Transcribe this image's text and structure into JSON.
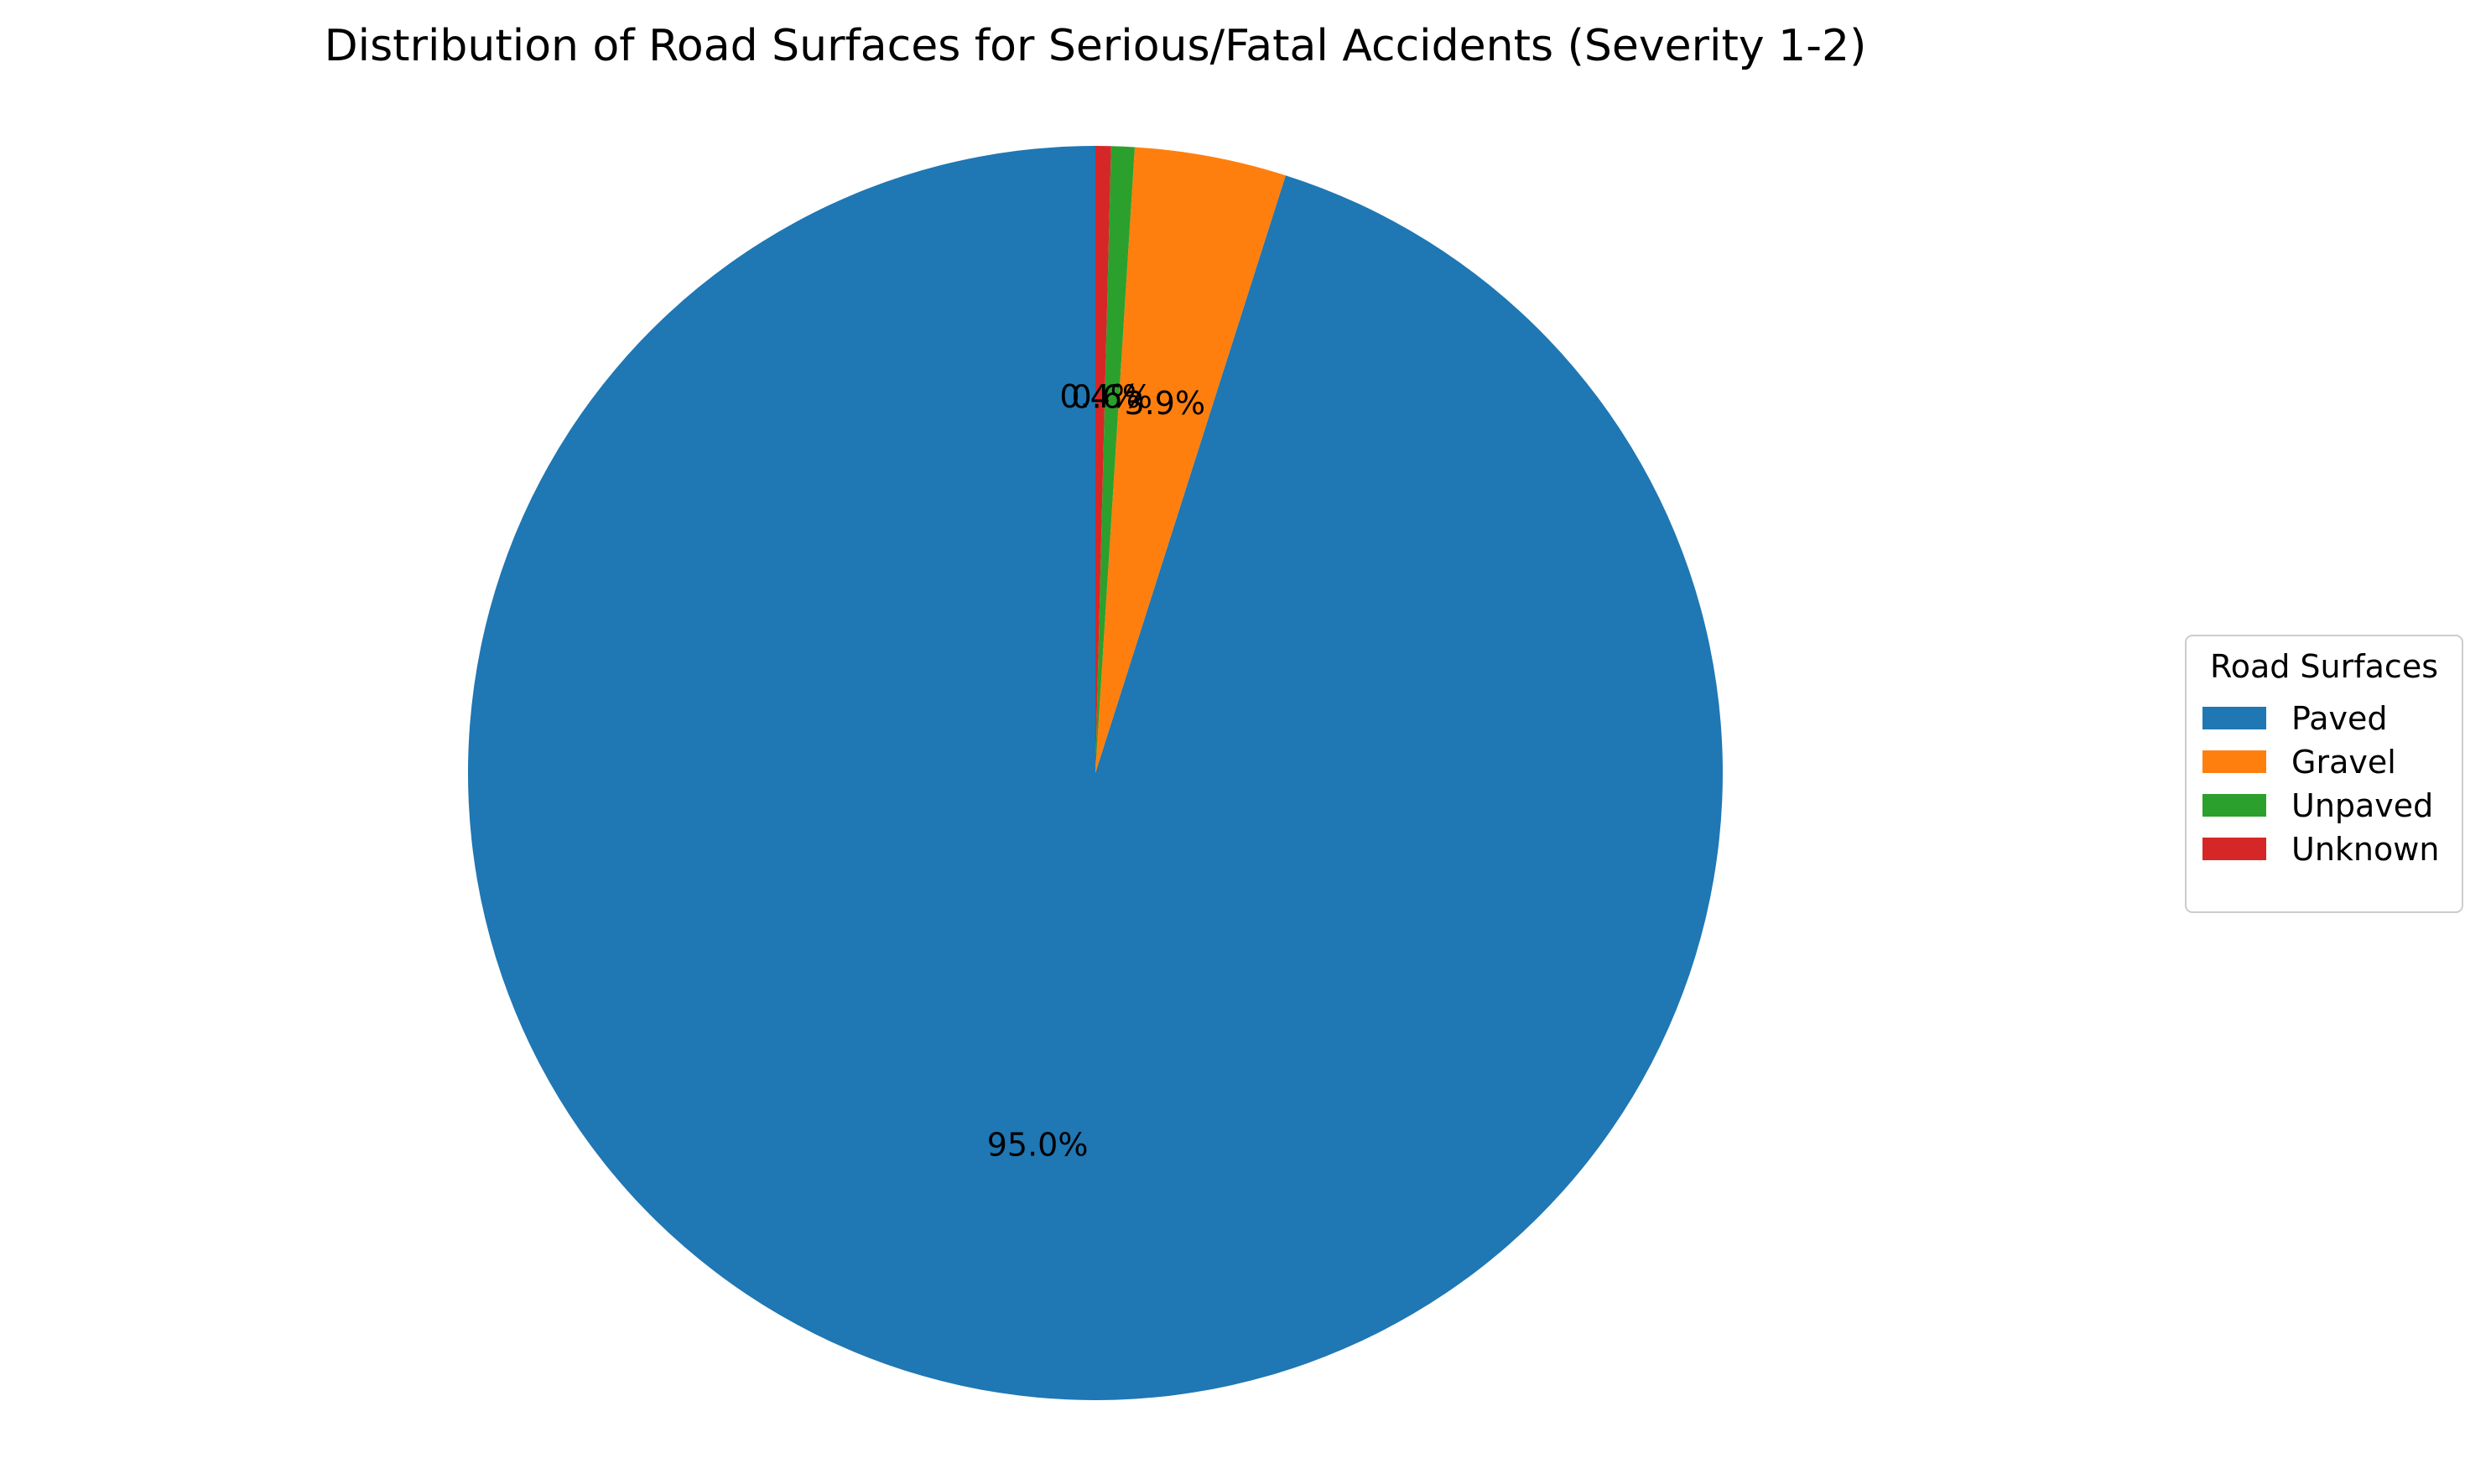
{
  "chart_data": {
    "type": "pie",
    "title": "Distribution of Road Surfaces for Serious/Fatal Accidents (Severity 1-2)",
    "categories": [
      "Paved",
      "Gravel",
      "Unpaved",
      "Unknown"
    ],
    "values": [
      95.0,
      3.9,
      0.6,
      0.4
    ],
    "labels": [
      "95.0%",
      "3.9%",
      "0.6%",
      "0.4%"
    ],
    "colors": [
      "#1f77b4",
      "#ff7f0e",
      "#2ca02c",
      "#d62728"
    ],
    "start_angle_deg": 90,
    "direction": "counterclockwise",
    "legend": {
      "title": "Road Surfaces",
      "placement": "center-right"
    }
  }
}
